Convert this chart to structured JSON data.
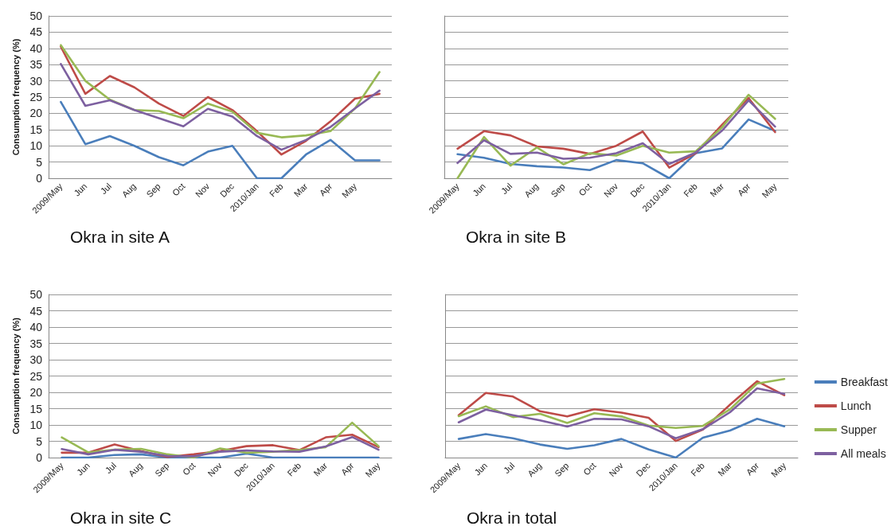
{
  "chart_data": [
    {
      "type": "line",
      "title": "Okra in site A",
      "ylabel": "Consumption frequency (%)",
      "categories": [
        "2009/May",
        "Jun",
        "Jul",
        "Aug",
        "Sep",
        "Oct",
        "Nov",
        "Dec",
        "2010/Jan",
        "Feb",
        "Mar",
        "Apr",
        "May",
        null
      ],
      "ylim": [
        0,
        50
      ],
      "yticks": [
        0,
        5,
        10,
        15,
        20,
        25,
        30,
        35,
        40,
        45,
        50
      ],
      "grid": "y",
      "legend": false,
      "marker": "none",
      "line_style": "solid",
      "series": [
        {
          "color": "#4a7ebb",
          "values": [
            23.5,
            10.5,
            13,
            10,
            6.5,
            4,
            8.2,
            10,
            0,
            0,
            7.3,
            11.8,
            5.5,
            5.5
          ]
        },
        {
          "color": "#be4b48",
          "values": [
            40.5,
            26,
            31.5,
            28,
            23,
            19.2,
            25,
            21,
            14.5,
            7.3,
            11.5,
            17.5,
            24.5,
            26
          ]
        },
        {
          "color": "#98b954",
          "values": [
            41,
            30,
            24.2,
            21,
            20.7,
            18.5,
            23,
            20.5,
            14,
            12.6,
            13.2,
            14.5,
            21.5,
            32.7
          ]
        },
        {
          "color": "#7d60a0",
          "values": [
            35.2,
            22.3,
            24,
            21,
            18.5,
            16,
            21.4,
            19,
            13,
            8.8,
            11.8,
            15.8,
            21.5,
            27
          ]
        }
      ]
    },
    {
      "type": "line",
      "title": "Okra in site B",
      "categories": [
        "2009/May",
        "Jun",
        "Jul",
        "Aug",
        "Sep",
        "Oct",
        "Nov",
        "Dec",
        "2010/Jan",
        "Feb",
        "Mar",
        "Apr",
        "May"
      ],
      "ylim": [
        0,
        50
      ],
      "yticks": [
        0,
        5,
        10,
        15,
        20,
        25,
        30,
        35,
        40,
        45,
        50
      ],
      "tick_labels": "x",
      "grid": "y",
      "legend": false,
      "marker": "none",
      "line_style": "solid",
      "series": [
        {
          "color": "#4a7ebb",
          "values": [
            7.4,
            6.3,
            4.4,
            3.7,
            3.3,
            2.5,
            5.6,
            4.6,
            0,
            7.7,
            9.2,
            18.1,
            14.6
          ]
        },
        {
          "color": "#be4b48",
          "values": [
            9.1,
            14.5,
            13.2,
            9.8,
            9.1,
            7.5,
            10,
            14.4,
            3.3,
            7.7,
            16.5,
            24.7,
            14.2
          ]
        },
        {
          "color": "#98b954",
          "values": [
            0,
            12.7,
            3.9,
            9.5,
            4.3,
            7.7,
            7,
            10,
            7.9,
            8.3,
            15.7,
            25.7,
            18.3
          ]
        },
        {
          "color": "#7d60a0",
          "values": [
            4.7,
            11.7,
            7.5,
            7.9,
            6,
            6.3,
            7.7,
            10.8,
            4.4,
            7.9,
            14.7,
            24,
            15.9
          ]
        }
      ]
    },
    {
      "type": "line",
      "title": "Okra in site C",
      "ylabel": "Consumption frequency (%)",
      "categories": [
        "2009/May",
        "Jun",
        "Jul",
        "Aug",
        "Sep",
        "Oct",
        "Nov",
        "Dec",
        "2010/Jan",
        "Feb",
        "Mar",
        "Apr",
        "May"
      ],
      "ylim": [
        0,
        50
      ],
      "yticks": [
        0,
        5,
        10,
        15,
        20,
        25,
        30,
        35,
        40,
        45,
        50
      ],
      "grid": "y",
      "legend": false,
      "marker": "none",
      "line_style": "solid",
      "series": [
        {
          "color": "#4a7ebb",
          "values": [
            0,
            0,
            0.8,
            1,
            0,
            0,
            0,
            1.2,
            0,
            0,
            0,
            0,
            0
          ]
        },
        {
          "color": "#be4b48",
          "values": [
            1.5,
            1.5,
            4,
            2,
            0.2,
            1,
            2,
            3.5,
            3.8,
            2.3,
            6.2,
            7,
            3.2
          ]
        },
        {
          "color": "#98b954",
          "values": [
            6.2,
            1.6,
            2.4,
            2.7,
            1,
            0,
            2.8,
            1.5,
            1.8,
            2.3,
            3.2,
            10.7,
            3.5
          ]
        },
        {
          "color": "#7d60a0",
          "values": [
            2.6,
            1,
            2.4,
            1.8,
            0.5,
            0.4,
            1.8,
            2.2,
            1.9,
            1.8,
            3.4,
            6.3,
            2.4
          ]
        }
      ]
    },
    {
      "type": "line",
      "title": "Okra in total",
      "categories": [
        "2009/May",
        "Jun",
        "Jul",
        "Aug",
        "Sep",
        "Oct",
        "Nov",
        "Dec",
        "2010/Jan",
        "Feb",
        "Mar",
        "Apr",
        "May"
      ],
      "ylim": [
        0,
        50
      ],
      "yticks": [
        0,
        5,
        10,
        15,
        20,
        25,
        30,
        35,
        40,
        45,
        50
      ],
      "tick_labels": "x",
      "grid": "y",
      "legend": "right",
      "marker": "none",
      "line_style": "solid",
      "series": [
        {
          "name": "Breakfast",
          "color": "#4a7ebb",
          "values": [
            5.7,
            7.2,
            5.9,
            4,
            2.7,
            3.8,
            5.7,
            2.5,
            0,
            6.1,
            8.3,
            11.9,
            9.6
          ]
        },
        {
          "name": "Lunch",
          "color": "#be4b48",
          "values": [
            13,
            19.8,
            18.7,
            14.2,
            12.6,
            14.8,
            13.8,
            12.2,
            5.1,
            8.6,
            16.2,
            23.4,
            19.1
          ]
        },
        {
          "name": "Supper",
          "color": "#98b954",
          "values": [
            12.7,
            15.7,
            12.4,
            13.4,
            10.6,
            13.6,
            12.6,
            9.8,
            9.1,
            9.7,
            14.8,
            22.7,
            24.1
          ]
        },
        {
          "name": "All meals",
          "color": "#7d60a0",
          "values": [
            10.8,
            14.7,
            13,
            11.4,
            9.5,
            11.9,
            11.7,
            9.6,
            5.9,
            8.7,
            13.9,
            21.2,
            19.5
          ]
        }
      ]
    }
  ]
}
